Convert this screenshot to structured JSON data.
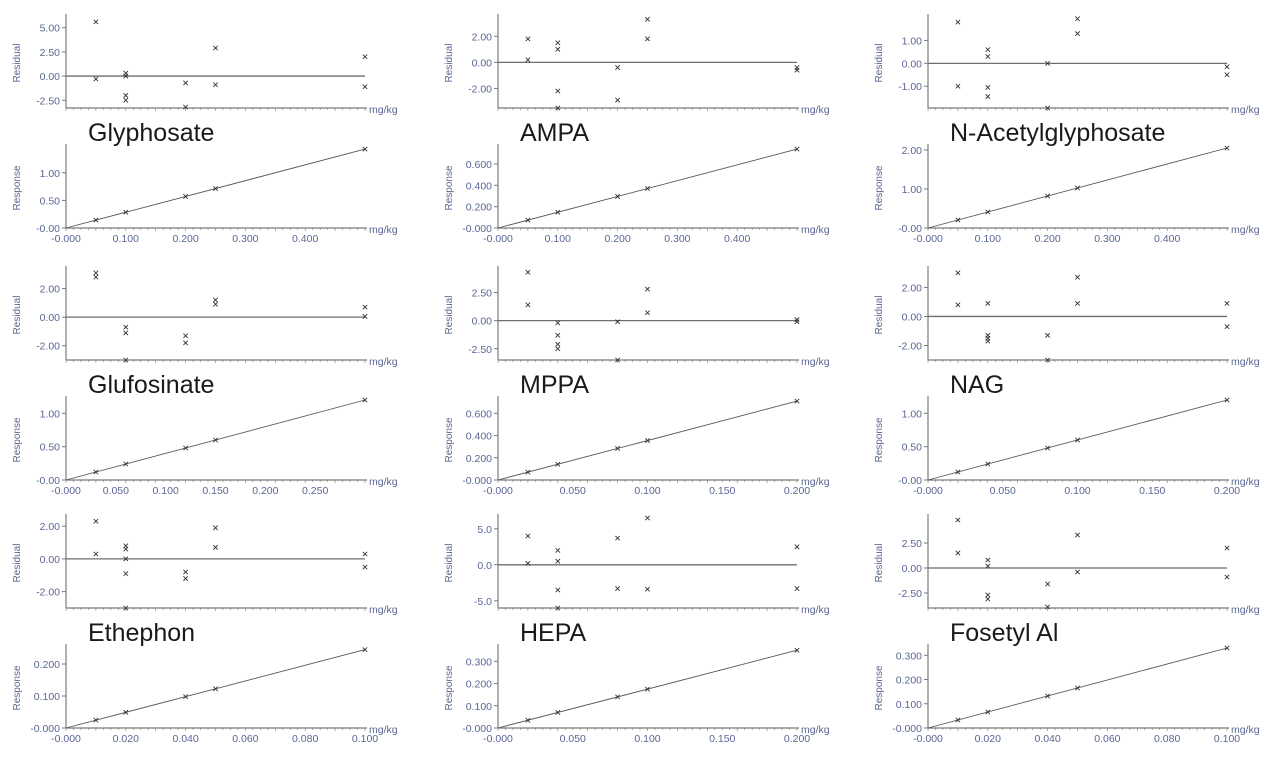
{
  "common": {
    "residual_label": "Residual",
    "response_label": "Response",
    "unit_label": "mg/kg",
    "axis_color": "#7a7a7a",
    "tick_color": "#5a6694",
    "point_color": "#333333"
  },
  "chart_data": [
    {
      "type": "scatter",
      "title": "Glyphosate",
      "xlim": [
        0,
        0.5
      ],
      "xticks": [
        [
          0,
          "-0.000"
        ],
        [
          0.1,
          "0.100"
        ],
        [
          0.2,
          "0.200"
        ],
        [
          0.3,
          "0.300"
        ],
        [
          0.4,
          "0.400"
        ]
      ],
      "residual": {
        "ylim": [
          -3.3,
          6
        ],
        "yticks": [
          [
            -2.5,
            "-2.50"
          ],
          [
            0,
            "0.00"
          ],
          [
            2.5,
            "2.50"
          ],
          [
            5,
            "5.00"
          ]
        ],
        "points": [
          [
            0.05,
            5.6
          ],
          [
            0.05,
            -0.3
          ],
          [
            0.1,
            0.3
          ],
          [
            0.1,
            0
          ],
          [
            0.1,
            -2.0
          ],
          [
            0.1,
            -2.5
          ],
          [
            0.2,
            -0.7
          ],
          [
            0.2,
            -3.2
          ],
          [
            0.25,
            2.9
          ],
          [
            0.25,
            -0.9
          ],
          [
            0.5,
            2.0
          ],
          [
            0.5,
            -1.1
          ]
        ]
      },
      "response": {
        "ylim": [
          0,
          1.45
        ],
        "yticks": [
          [
            0,
            "-0.00"
          ],
          [
            0.5,
            "0.50"
          ],
          [
            1,
            "1.00"
          ]
        ],
        "slope": 2.86,
        "x": [
          0.05,
          0.1,
          0.2,
          0.25,
          0.5
        ]
      }
    },
    {
      "type": "scatter",
      "title": "AMPA",
      "xlim": [
        0,
        0.5
      ],
      "xticks": [
        [
          0,
          "-0.000"
        ],
        [
          0.1,
          "0.100"
        ],
        [
          0.2,
          "0.200"
        ],
        [
          0.3,
          "0.300"
        ],
        [
          0.4,
          "0.400"
        ]
      ],
      "residual": {
        "ylim": [
          -3.5,
          3.4
        ],
        "yticks": [
          [
            -2,
            "-2.00"
          ],
          [
            0,
            "0.00"
          ],
          [
            2,
            "2.00"
          ]
        ],
        "points": [
          [
            0.05,
            1.8
          ],
          [
            0.05,
            0.2
          ],
          [
            0.1,
            1.5
          ],
          [
            0.1,
            1.0
          ],
          [
            0.1,
            -2.2
          ],
          [
            0.1,
            -3.5
          ],
          [
            0.2,
            -0.4
          ],
          [
            0.2,
            -2.9
          ],
          [
            0.25,
            3.3
          ],
          [
            0.25,
            1.8
          ],
          [
            0.5,
            -0.4
          ],
          [
            0.5,
            -0.6
          ]
        ]
      },
      "response": {
        "ylim": [
          0,
          0.75
        ],
        "yticks": [
          [
            0,
            "-0.000"
          ],
          [
            0.2,
            "0.200"
          ],
          [
            0.4,
            "0.400"
          ],
          [
            0.6,
            "0.600"
          ]
        ],
        "slope": 1.48,
        "x": [
          0.05,
          0.1,
          0.2,
          0.25,
          0.5
        ]
      }
    },
    {
      "type": "scatter",
      "title": "N-Acetylglyphosate",
      "xlim": [
        0,
        0.5
      ],
      "xticks": [
        [
          0,
          "-0.000"
        ],
        [
          0.1,
          "0.100"
        ],
        [
          0.2,
          "0.200"
        ],
        [
          0.3,
          "0.300"
        ],
        [
          0.4,
          "0.400"
        ]
      ],
      "residual": {
        "ylim": [
          -1.95,
          1.98
        ],
        "yticks": [
          [
            -1,
            "-1.00"
          ],
          [
            0,
            "0.00"
          ],
          [
            1,
            "1.00"
          ]
        ],
        "points": [
          [
            0.05,
            1.8
          ],
          [
            0.05,
            -1.0
          ],
          [
            0.1,
            0.6
          ],
          [
            0.1,
            0.3
          ],
          [
            0.1,
            -1.05
          ],
          [
            0.1,
            -1.45
          ],
          [
            0.2,
            0
          ],
          [
            0.2,
            -1.95
          ],
          [
            0.25,
            1.95
          ],
          [
            0.25,
            1.3
          ],
          [
            0.5,
            -0.15
          ],
          [
            0.5,
            -0.5
          ]
        ]
      },
      "response": {
        "ylim": [
          0,
          2.05
        ],
        "yticks": [
          [
            0,
            "-0.00"
          ],
          [
            1,
            "1.00"
          ],
          [
            2,
            "2.00"
          ]
        ],
        "slope": 4.1,
        "x": [
          0.05,
          0.1,
          0.2,
          0.25,
          0.5
        ]
      }
    },
    {
      "type": "scatter",
      "title": "Glufosinate",
      "xlim": [
        0,
        0.3
      ],
      "xticks": [
        [
          0,
          "-0.000"
        ],
        [
          0.05,
          "0.050"
        ],
        [
          0.1,
          "0.100"
        ],
        [
          0.15,
          "0.150"
        ],
        [
          0.2,
          "0.200"
        ],
        [
          0.25,
          "0.250"
        ]
      ],
      "residual": {
        "ylim": [
          -3,
          3.3
        ],
        "yticks": [
          [
            -2,
            "-2.00"
          ],
          [
            0,
            "0.00"
          ],
          [
            2,
            "2.00"
          ]
        ],
        "points": [
          [
            0.03,
            3.1
          ],
          [
            0.03,
            2.8
          ],
          [
            0.06,
            -0.7
          ],
          [
            0.06,
            -1.1
          ],
          [
            0.06,
            -3.0
          ],
          [
            0.12,
            -1.3
          ],
          [
            0.12,
            -1.8
          ],
          [
            0.15,
            1.2
          ],
          [
            0.15,
            0.9
          ],
          [
            0.3,
            0.7
          ],
          [
            0.3,
            0.05
          ]
        ]
      },
      "response": {
        "ylim": [
          0,
          1.2
        ],
        "yticks": [
          [
            0,
            "-0.00"
          ],
          [
            0.5,
            "0.50"
          ],
          [
            1,
            "1.00"
          ]
        ],
        "slope": 4.0,
        "x": [
          0.03,
          0.06,
          0.12,
          0.15,
          0.3
        ]
      }
    },
    {
      "type": "scatter",
      "title": "MPPA",
      "xlim": [
        0,
        0.2
      ],
      "xticks": [
        [
          0,
          "-0.000"
        ],
        [
          0.05,
          "0.050"
        ],
        [
          0.1,
          "0.100"
        ],
        [
          0.15,
          "0.150"
        ],
        [
          0.2,
          "0.200"
        ]
      ],
      "residual": {
        "ylim": [
          -3.5,
          4.5
        ],
        "yticks": [
          [
            -2.5,
            "-2.50"
          ],
          [
            0,
            "0.00"
          ],
          [
            2.5,
            "2.50"
          ]
        ],
        "points": [
          [
            0.02,
            4.3
          ],
          [
            0.02,
            1.4
          ],
          [
            0.04,
            -0.2
          ],
          [
            0.04,
            -1.3
          ],
          [
            0.04,
            -2.1
          ],
          [
            0.04,
            -2.5
          ],
          [
            0.08,
            -0.1
          ],
          [
            0.08,
            -3.5
          ],
          [
            0.1,
            2.8
          ],
          [
            0.1,
            0.7
          ],
          [
            0.2,
            0.1
          ],
          [
            0.2,
            -0.1
          ]
        ]
      },
      "response": {
        "ylim": [
          0,
          0.72
        ],
        "yticks": [
          [
            0,
            "-0.000"
          ],
          [
            0.2,
            "0.200"
          ],
          [
            0.4,
            "0.400"
          ],
          [
            0.6,
            "0.600"
          ]
        ],
        "slope": 3.55,
        "x": [
          0.02,
          0.04,
          0.08,
          0.1,
          0.2
        ]
      }
    },
    {
      "type": "scatter",
      "title": "NAG",
      "xlim": [
        0,
        0.2
      ],
      "xticks": [
        [
          0,
          "-0.000"
        ],
        [
          0.05,
          "0.050"
        ],
        [
          0.1,
          "0.100"
        ],
        [
          0.15,
          "0.150"
        ],
        [
          0.2,
          "0.200"
        ]
      ],
      "residual": {
        "ylim": [
          -3,
          3.2
        ],
        "yticks": [
          [
            -2,
            "-2.00"
          ],
          [
            0,
            "0.00"
          ],
          [
            2,
            "2.00"
          ]
        ],
        "points": [
          [
            0.02,
            3.0
          ],
          [
            0.02,
            0.8
          ],
          [
            0.04,
            0.9
          ],
          [
            0.04,
            -1.3
          ],
          [
            0.04,
            -1.5
          ],
          [
            0.04,
            -1.7
          ],
          [
            0.08,
            -1.3
          ],
          [
            0.08,
            -3.0
          ],
          [
            0.1,
            2.7
          ],
          [
            0.1,
            0.9
          ],
          [
            0.2,
            0.9
          ],
          [
            0.2,
            -0.7
          ]
        ]
      },
      "response": {
        "ylim": [
          0,
          1.2
        ],
        "yticks": [
          [
            0,
            "-0.00"
          ],
          [
            0.5,
            "0.50"
          ],
          [
            1,
            "1.00"
          ]
        ],
        "slope": 6.0,
        "x": [
          0.02,
          0.04,
          0.08,
          0.1,
          0.2
        ]
      }
    },
    {
      "type": "scatter",
      "title": "Ethephon",
      "xlim": [
        0,
        0.1
      ],
      "xticks": [
        [
          0,
          "-0.000"
        ],
        [
          0.02,
          "0.020"
        ],
        [
          0.04,
          "0.040"
        ],
        [
          0.06,
          "0.060"
        ],
        [
          0.08,
          "0.080"
        ],
        [
          0.1,
          "0.100"
        ]
      ],
      "residual": {
        "ylim": [
          -3,
          2.5
        ],
        "yticks": [
          [
            -2,
            "-2.00"
          ],
          [
            0,
            "0.00"
          ],
          [
            2,
            "2.00"
          ]
        ],
        "points": [
          [
            0.01,
            2.3
          ],
          [
            0.01,
            0.3
          ],
          [
            0.02,
            0.8
          ],
          [
            0.02,
            0.6
          ],
          [
            0.02,
            0
          ],
          [
            0.02,
            -0.9
          ],
          [
            0.02,
            -3.0
          ],
          [
            0.04,
            -0.8
          ],
          [
            0.04,
            -1.2
          ],
          [
            0.05,
            1.9
          ],
          [
            0.05,
            0.7
          ],
          [
            0.1,
            0.3
          ],
          [
            0.1,
            -0.5
          ]
        ]
      },
      "response": {
        "ylim": [
          0,
          0.25
        ],
        "yticks": [
          [
            0,
            "-0.000"
          ],
          [
            0.1,
            "0.100"
          ],
          [
            0.2,
            "0.200"
          ]
        ],
        "slope": 2.45,
        "x": [
          0.01,
          0.02,
          0.04,
          0.05,
          0.1
        ]
      }
    },
    {
      "type": "scatter",
      "title": "HEPA",
      "xlim": [
        0,
        0.2
      ],
      "xticks": [
        [
          0,
          "-0.000"
        ],
        [
          0.05,
          "0.050"
        ],
        [
          0.1,
          "0.100"
        ],
        [
          0.15,
          "0.150"
        ],
        [
          0.2,
          "0.200"
        ]
      ],
      "residual": {
        "ylim": [
          -6,
          6.5
        ],
        "yticks": [
          [
            -5,
            "-5.0"
          ],
          [
            0,
            "0.0"
          ],
          [
            5,
            "5.0"
          ]
        ],
        "points": [
          [
            0.02,
            4.0
          ],
          [
            0.02,
            0.2
          ],
          [
            0.04,
            2.0
          ],
          [
            0.04,
            0.5
          ],
          [
            0.04,
            -3.5
          ],
          [
            0.04,
            -6.0
          ],
          [
            0.08,
            3.7
          ],
          [
            0.08,
            -3.3
          ],
          [
            0.1,
            6.5
          ],
          [
            0.1,
            -3.4
          ],
          [
            0.2,
            2.5
          ],
          [
            0.2,
            -3.3
          ]
        ]
      },
      "response": {
        "ylim": [
          0,
          0.36
        ],
        "yticks": [
          [
            0,
            "-0.000"
          ],
          [
            0.1,
            "0.100"
          ],
          [
            0.2,
            "0.200"
          ],
          [
            0.3,
            "0.300"
          ]
        ],
        "slope": 1.75,
        "x": [
          0.02,
          0.04,
          0.08,
          0.1,
          0.2
        ]
      }
    },
    {
      "type": "scatter",
      "title": "Fosetyl Al",
      "xlim": [
        0,
        0.1
      ],
      "xticks": [
        [
          0,
          "-0.000"
        ],
        [
          0.02,
          "0.020"
        ],
        [
          0.04,
          "0.040"
        ],
        [
          0.06,
          "0.060"
        ],
        [
          0.08,
          "0.080"
        ],
        [
          0.1,
          "0.100"
        ]
      ],
      "residual": {
        "ylim": [
          -4,
          5
        ],
        "yticks": [
          [
            -2.5,
            "-2.50"
          ],
          [
            0,
            "0.00"
          ],
          [
            2.5,
            "2.50"
          ]
        ],
        "points": [
          [
            0.01,
            4.8
          ],
          [
            0.01,
            1.5
          ],
          [
            0.02,
            0.8
          ],
          [
            0.02,
            0.2
          ],
          [
            0.02,
            -2.7
          ],
          [
            0.02,
            -3.1
          ],
          [
            0.04,
            -1.6
          ],
          [
            0.04,
            -3.9
          ],
          [
            0.05,
            3.3
          ],
          [
            0.05,
            -0.4
          ],
          [
            0.1,
            2.0
          ],
          [
            0.1,
            -0.9
          ]
        ]
      },
      "response": {
        "ylim": [
          0,
          0.33
        ],
        "yticks": [
          [
            0,
            "-0.000"
          ],
          [
            0.1,
            "0.100"
          ],
          [
            0.2,
            "0.200"
          ],
          [
            0.3,
            "0.300"
          ]
        ],
        "slope": 3.3,
        "x": [
          0.01,
          0.02,
          0.04,
          0.05,
          0.1
        ]
      }
    }
  ]
}
